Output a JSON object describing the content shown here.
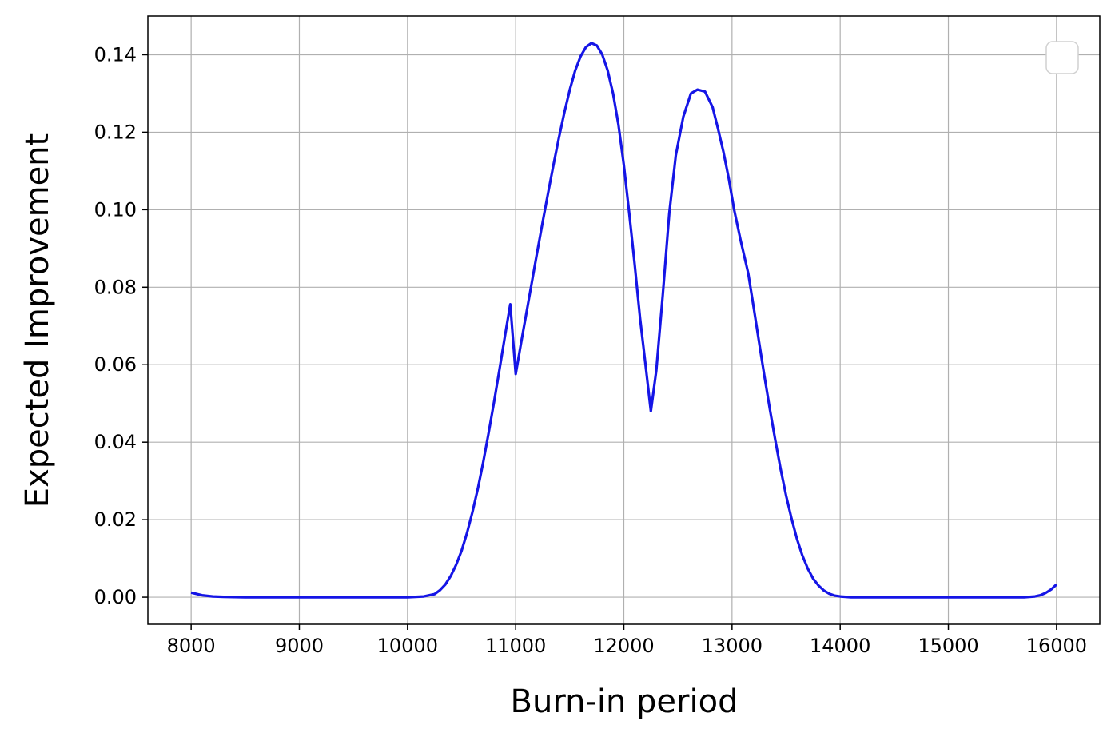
{
  "chart_data": {
    "type": "line",
    "title": "",
    "xlabel": "Burn-in period",
    "ylabel": "Expected Improvement",
    "xlim": [
      7600,
      16400
    ],
    "ylim": [
      -0.007,
      0.15
    ],
    "xticks": [
      8000,
      9000,
      10000,
      11000,
      12000,
      13000,
      14000,
      15000,
      16000
    ],
    "xtick_labels": [
      "8000",
      "9000",
      "10000",
      "11000",
      "12000",
      "13000",
      "14000",
      "15000",
      "16000"
    ],
    "yticks": [
      0.0,
      0.02,
      0.04,
      0.06,
      0.08,
      0.1,
      0.12,
      0.14
    ],
    "ytick_labels": [
      "0.00",
      "0.02",
      "0.04",
      "0.06",
      "0.08",
      "0.10",
      "0.12",
      "0.14"
    ],
    "grid": true,
    "legend": "top-right (empty)",
    "series": [
      {
        "color": "#1515e6",
        "x": [
          8000,
          8100,
          8200,
          8300,
          8500,
          9000,
          9500,
          10000,
          10150,
          10250,
          10300,
          10350,
          10400,
          10450,
          10500,
          10550,
          10600,
          10650,
          10700,
          10750,
          10800,
          10850,
          10900,
          10950,
          11000,
          11050,
          11100,
          11150,
          11200,
          11250,
          11300,
          11350,
          11400,
          11450,
          11500,
          11550,
          11600,
          11650,
          11700,
          11750,
          11800,
          11850,
          11900,
          11950,
          12000,
          12050,
          12100,
          12150,
          12200,
          12250,
          12300,
          12360,
          12420,
          12480,
          12550,
          12620,
          12680,
          12750,
          12820,
          12870,
          12920,
          12970,
          13020,
          13080,
          13150,
          13200,
          13250,
          13300,
          13350,
          13400,
          13450,
          13500,
          13550,
          13600,
          13650,
          13700,
          13750,
          13800,
          13850,
          13900,
          13950,
          14000,
          14050,
          14100,
          14150,
          14200,
          14250,
          14300,
          14350,
          14400,
          14500,
          15000,
          15500,
          15700,
          15800,
          15850,
          15900,
          15950,
          16000
        ],
        "y": [
          0.0012,
          0.0005,
          0.0002,
          0.0001,
          0.0,
          0.0,
          0.0,
          0.0,
          0.0002,
          0.0008,
          0.0018,
          0.0033,
          0.0055,
          0.0084,
          0.012,
          0.0166,
          0.0219,
          0.028,
          0.0349,
          0.0424,
          0.0504,
          0.0588,
          0.0672,
          0.0756,
          0.0576,
          0.0656,
          0.0735,
          0.0814,
          0.0892,
          0.0969,
          0.1044,
          0.1116,
          0.1186,
          0.1251,
          0.1309,
          0.1359,
          0.1396,
          0.142,
          0.143,
          0.1424,
          0.1401,
          0.136,
          0.13,
          0.122,
          0.1115,
          0.099,
          0.086,
          0.072,
          0.06,
          0.048,
          0.0585,
          0.078,
          0.099,
          0.114,
          0.124,
          0.13,
          0.131,
          0.1305,
          0.1265,
          0.121,
          0.115,
          0.108,
          0.1,
          0.092,
          0.0836,
          0.0748,
          0.0658,
          0.057,
          0.0485,
          0.0405,
          0.033,
          0.0262,
          0.0203,
          0.0151,
          0.0108,
          0.0074,
          0.0048,
          0.003,
          0.0017,
          0.0009,
          0.0004,
          0.0002,
          0.0001,
          0.0,
          0.0,
          0.0,
          0.0,
          0.0,
          0.0,
          0.0,
          0.0,
          0.0,
          0.0,
          0.0,
          0.0002,
          0.0005,
          0.0011,
          0.002,
          0.0033
        ]
      }
    ]
  }
}
